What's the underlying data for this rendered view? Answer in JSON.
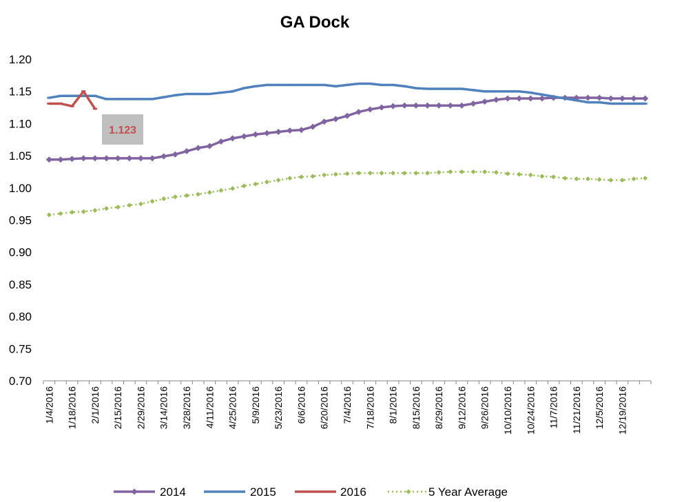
{
  "chart_data": {
    "type": "line",
    "title": "GA Dock",
    "ylim": [
      0.7,
      1.2
    ],
    "y_ticks": [
      "0.70",
      "0.75",
      "0.80",
      "0.85",
      "0.90",
      "0.95",
      "1.00",
      "1.05",
      "1.10",
      "1.15",
      "1.20"
    ],
    "x_tick_labels": [
      "1/4/2016",
      "1/18/2016",
      "2/1/2016",
      "2/15/2016",
      "2/29/2016",
      "3/14/2016",
      "3/28/2016",
      "4/11/2016",
      "4/25/2016",
      "5/9/2016",
      "5/23/2016",
      "6/6/2016",
      "6/20/2016",
      "7/4/2016",
      "7/18/2016",
      "8/1/2016",
      "8/15/2016",
      "8/29/2016",
      "9/12/2016",
      "9/26/2016",
      "10/10/2016",
      "10/24/2016",
      "11/7/2016",
      "11/21/2016",
      "12/5/2016",
      "12/19/2016"
    ],
    "legend_position": "bottom",
    "grid": false,
    "series": [
      {
        "name": "2014",
        "color": "#8064A2",
        "marker": "diamond",
        "values": [
          1.044,
          1.044,
          1.045,
          1.046,
          1.046,
          1.046,
          1.046,
          1.046,
          1.046,
          1.046,
          1.049,
          1.052,
          1.057,
          1.062,
          1.065,
          1.072,
          1.077,
          1.08,
          1.083,
          1.085,
          1.087,
          1.089,
          1.09,
          1.095,
          1.103,
          1.107,
          1.112,
          1.118,
          1.122,
          1.125,
          1.127,
          1.128,
          1.128,
          1.128,
          1.128,
          1.128,
          1.128,
          1.131,
          1.134,
          1.137,
          1.139,
          1.139,
          1.139,
          1.139,
          1.14,
          1.14,
          1.14,
          1.14,
          1.14,
          1.139,
          1.139,
          1.139,
          1.139
        ]
      },
      {
        "name": "2015",
        "color": "#4F81BD",
        "marker": "dash",
        "values": [
          1.14,
          1.143,
          1.143,
          1.143,
          1.143,
          1.138,
          1.138,
          1.138,
          1.138,
          1.138,
          1.141,
          1.144,
          1.146,
          1.146,
          1.146,
          1.148,
          1.15,
          1.155,
          1.158,
          1.16,
          1.16,
          1.16,
          1.16,
          1.16,
          1.16,
          1.158,
          1.16,
          1.162,
          1.162,
          1.16,
          1.16,
          1.158,
          1.155,
          1.154,
          1.154,
          1.154,
          1.154,
          1.152,
          1.15,
          1.15,
          1.15,
          1.15,
          1.148,
          1.145,
          1.142,
          1.139,
          1.136,
          1.133,
          1.133,
          1.131,
          1.131,
          1.131,
          1.131
        ]
      },
      {
        "name": "2016",
        "color": "#C0504D",
        "marker": "dash",
        "values": [
          1.131,
          1.131,
          1.127,
          1.15,
          1.123
        ],
        "data_label": "1.123"
      },
      {
        "name": "5 Year Average",
        "color": "#9BBB59",
        "marker": "diamond",
        "dashed": true,
        "values": [
          0.958,
          0.96,
          0.962,
          0.963,
          0.965,
          0.968,
          0.97,
          0.973,
          0.975,
          0.979,
          0.983,
          0.986,
          0.988,
          0.99,
          0.993,
          0.996,
          0.999,
          1.003,
          1.006,
          1.009,
          1.012,
          1.015,
          1.017,
          1.018,
          1.02,
          1.021,
          1.022,
          1.023,
          1.023,
          1.023,
          1.023,
          1.023,
          1.023,
          1.023,
          1.024,
          1.025,
          1.025,
          1.025,
          1.025,
          1.024,
          1.022,
          1.021,
          1.02,
          1.018,
          1.017,
          1.015,
          1.014,
          1.014,
          1.013,
          1.012,
          1.012,
          1.014,
          1.015
        ]
      }
    ]
  }
}
